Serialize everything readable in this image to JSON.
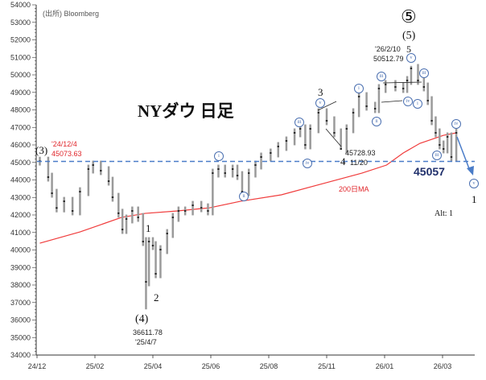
{
  "chart_data": {
    "type": "candlestick",
    "title": "NYダウ 日足",
    "source": "(出所) Bloomberg",
    "ylim": [
      34000,
      54000
    ],
    "y_ticks": [
      34000,
      35000,
      36000,
      37000,
      38000,
      39000,
      40000,
      41000,
      42000,
      43000,
      44000,
      45000,
      46000,
      47000,
      48000,
      49000,
      50000,
      51000,
      52000,
      53000,
      54000
    ],
    "x_ticks": [
      "24/12",
      "25/02",
      "25/04",
      "25/06",
      "25/08",
      "25/11",
      "26/01",
      "26/03"
    ],
    "grid": false,
    "price": [
      {
        "d": "2024-12-04",
        "c": 45074
      },
      {
        "d": "2024-12-13",
        "c": 44160
      },
      {
        "d": "2024-12-17",
        "c": 43240
      },
      {
        "d": "2024-12-22",
        "c": 42400
      },
      {
        "d": "2024-12-30",
        "c": 42780
      },
      {
        "d": "2025-01-08",
        "c": 42230
      },
      {
        "d": "2025-01-16",
        "c": 43330
      },
      {
        "d": "2025-01-25",
        "c": 44620
      },
      {
        "d": "2025-01-30",
        "c": 44850
      },
      {
        "d": "2025-02-07",
        "c": 44530
      },
      {
        "d": "2025-02-15",
        "c": 43930
      },
      {
        "d": "2025-02-19",
        "c": 43010
      },
      {
        "d": "2025-02-25",
        "c": 42100
      },
      {
        "d": "2025-03-01",
        "c": 41170
      },
      {
        "d": "2025-03-05",
        "c": 41770
      },
      {
        "d": "2025-03-11",
        "c": 42230
      },
      {
        "d": "2025-03-17",
        "c": 41860
      },
      {
        "d": "2025-03-22",
        "c": 40480
      },
      {
        "d": "2025-03-25",
        "c": 38180,
        "l": 36612
      },
      {
        "d": "2025-03-28",
        "c": 40480
      },
      {
        "d": "2025-04-01",
        "c": 40250
      },
      {
        "d": "2025-04-04",
        "c": 38640
      },
      {
        "d": "2025-04-09",
        "c": 40020
      },
      {
        "d": "2025-04-16",
        "c": 40940
      },
      {
        "d": "2025-04-22",
        "c": 41860
      },
      {
        "d": "2025-04-28",
        "c": 42230
      },
      {
        "d": "2025-05-05",
        "c": 42230
      },
      {
        "d": "2025-05-13",
        "c": 42550
      },
      {
        "d": "2025-05-22",
        "c": 42410
      },
      {
        "d": "2025-05-29",
        "c": 42230
      },
      {
        "d": "2025-06-03",
        "c": 44390
      },
      {
        "d": "2025-06-09",
        "c": 44620
      },
      {
        "d": "2025-06-16",
        "c": 44390
      },
      {
        "d": "2025-06-24",
        "c": 44620
      },
      {
        "d": "2025-06-29",
        "c": 44250
      },
      {
        "d": "2025-07-04",
        "c": 43330
      },
      {
        "d": "2025-07-11",
        "c": 44390
      },
      {
        "d": "2025-07-18",
        "c": 44850
      },
      {
        "d": "2025-07-24",
        "c": 45310
      },
      {
        "d": "2025-08-04",
        "c": 45540
      },
      {
        "d": "2025-08-16",
        "c": 45910
      },
      {
        "d": "2025-08-29",
        "c": 46230
      },
      {
        "d": "2025-09-11",
        "c": 46690
      },
      {
        "d": "2025-09-20",
        "c": 46920
      },
      {
        "d": "2025-09-28",
        "c": 46000
      },
      {
        "d": "2025-10-06",
        "c": 46920
      },
      {
        "d": "2025-10-19",
        "c": 47840
      },
      {
        "d": "2025-11-01",
        "c": 47380
      },
      {
        "d": "2025-11-09",
        "c": 46690
      },
      {
        "d": "2025-11-16",
        "c": 45770,
        "l": 45729
      },
      {
        "d": "2025-11-22",
        "c": 46920
      },
      {
        "d": "2025-11-29",
        "c": 47840
      },
      {
        "d": "2025-12-05",
        "c": 48760
      },
      {
        "d": "2025-12-13",
        "c": 48210
      },
      {
        "d": "2025-12-22",
        "c": 48070
      },
      {
        "d": "2025-12-26",
        "c": 49220
      },
      {
        "d": "2026-01-02",
        "c": 49450
      },
      {
        "d": "2026-01-12",
        "c": 49310
      },
      {
        "d": "2026-01-20",
        "c": 49220
      },
      {
        "d": "2026-01-24",
        "c": 49680
      },
      {
        "d": "2026-01-28",
        "c": 50370,
        "h": 50513
      },
      {
        "d": "2026-02-04",
        "c": 49680
      },
      {
        "d": "2026-02-10",
        "c": 49310
      },
      {
        "d": "2026-02-14",
        "c": 48530
      },
      {
        "d": "2026-02-18",
        "c": 47380
      },
      {
        "d": "2026-02-22",
        "c": 46690
      },
      {
        "d": "2026-02-26",
        "c": 46000
      },
      {
        "d": "2026-03-02",
        "c": 45770
      },
      {
        "d": "2026-03-06",
        "c": 46460
      },
      {
        "d": "2026-03-10",
        "c": 45310
      },
      {
        "d": "2026-03-15",
        "c": 46690
      }
    ],
    "ma200": {
      "label": "200日MA",
      "color": "#f03c3c",
      "points": [
        {
          "d": "2024-12-04",
          "v": 40390
        },
        {
          "d": "2025-01-16",
          "v": 41030
        },
        {
          "d": "2025-02-28",
          "v": 41860
        },
        {
          "d": "2025-03-24",
          "v": 42090
        },
        {
          "d": "2025-04-27",
          "v": 42230
        },
        {
          "d": "2025-05-31",
          "v": 42410
        },
        {
          "d": "2025-07-02",
          "v": 42780
        },
        {
          "d": "2025-08-21",
          "v": 43150
        },
        {
          "d": "2025-10-26",
          "v": 43790
        },
        {
          "d": "2025-12-08",
          "v": 44390
        },
        {
          "d": "2026-01-03",
          "v": 44850
        },
        {
          "d": "2026-01-20",
          "v": 45540
        },
        {
          "d": "2026-02-06",
          "v": 46090
        },
        {
          "d": "2026-03-02",
          "v": 46550
        },
        {
          "d": "2026-03-15",
          "v": 46690
        }
      ]
    },
    "support_line": {
      "value": 45057,
      "label": "45057",
      "color": "#4a7cc8"
    },
    "colors": {
      "candle": "#9a9a9a",
      "close_mark": "#111111",
      "arrow": "#4a7cc8",
      "wave_circle": "#4a6fb0"
    },
    "annotations": {
      "w3_paren": "(3)",
      "start_date": "'24/12/4",
      "start_value": "45073.63",
      "w1": "1",
      "w2": "2",
      "w4_paren": "(4)",
      "low_value": "36611.78",
      "low_date": "'25/4/7",
      "w3": "3",
      "w4": "4",
      "w4_value": "45728.93",
      "w4_date": "11/20",
      "w5_circled": "⑤",
      "w5_paren": "(5)",
      "w5": "5",
      "peak_date": "'26/2/10",
      "peak_value": "50512.79",
      "target_1": "1",
      "alt": "Alt: 1"
    },
    "wave_circles": [
      "i",
      "ii",
      "iii",
      "iv",
      "v",
      "i",
      "ii",
      "iii",
      "iv",
      "i",
      "v",
      "iii",
      "iii",
      "iv",
      "v"
    ]
  }
}
